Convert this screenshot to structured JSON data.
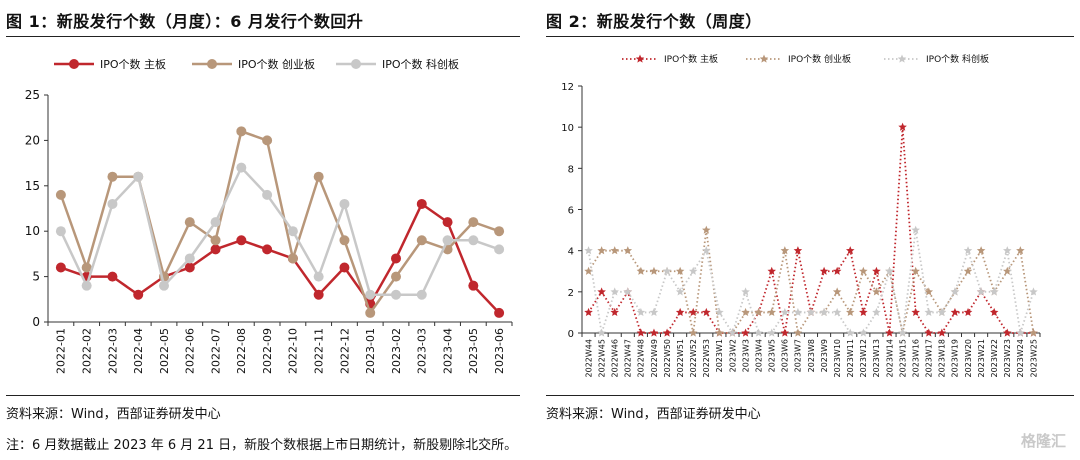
{
  "left": {
    "title": "图 1：新股发行个数（月度）：6 月发行个数回升",
    "source": "资料来源：Wind，西部证券研发中心"
  },
  "right": {
    "title": "图 2：新股发行个数（周度）",
    "source": "资料来源：Wind，西部证券研发中心"
  },
  "note": "注：6 月数据截止 2023 年 6 月 21 日，新股个数根据上市日期统计，新股剔除北交所。",
  "watermark": "格隆汇",
  "colors": {
    "main": "#C0272D",
    "chinext": "#B8977A",
    "star": "#C8C8C8"
  },
  "chart_data": [
    {
      "type": "line",
      "categories": [
        "2022-01",
        "2022-02",
        "2022-03",
        "2022-04",
        "2022-05",
        "2022-06",
        "2022-07",
        "2022-08",
        "2022-09",
        "2022-10",
        "2022-11",
        "2022-12",
        "2023-01",
        "2023-02",
        "2023-03",
        "2023-04",
        "2023-05",
        "2023-06"
      ],
      "ylim": [
        0,
        25
      ],
      "yticks": [
        0,
        5,
        10,
        15,
        20,
        25
      ],
      "legend_position": "top",
      "series": [
        {
          "name": "IPO个数 主板",
          "values": [
            6,
            5,
            5,
            3,
            5,
            6,
            8,
            9,
            8,
            7,
            3,
            6,
            2,
            7,
            13,
            11,
            4,
            1
          ]
        },
        {
          "name": "IPO个数 创业板",
          "values": [
            14,
            6,
            16,
            16,
            5,
            11,
            9,
            21,
            20,
            7,
            16,
            9,
            1,
            5,
            9,
            8,
            11,
            10
          ]
        },
        {
          "name": "IPO个数 科创板",
          "values": [
            10,
            4,
            13,
            16,
            4,
            7,
            11,
            17,
            14,
            10,
            5,
            13,
            3,
            3,
            3,
            9,
            9,
            8
          ]
        }
      ]
    },
    {
      "type": "line",
      "categories": [
        "2022W44",
        "2022W45",
        "2022W46",
        "2022W47",
        "2022W48",
        "2022W49",
        "2022W50",
        "2022W51",
        "2022W52",
        "2022W53",
        "2023W1",
        "2023W2",
        "2023W3",
        "2023W4",
        "2023W5",
        "2023W6",
        "2023W7",
        "2023W8",
        "2023W9",
        "2023W10",
        "2023W11",
        "2023W12",
        "2023W13",
        "2023W14",
        "2023W15",
        "2023W16",
        "2023W17",
        "2023W18",
        "2023W19",
        "2023W20",
        "2023W21",
        "2023W22",
        "2023W23",
        "2023W24",
        "2023W25"
      ],
      "ylim": [
        0,
        12
      ],
      "yticks": [
        0,
        2,
        4,
        6,
        8,
        10,
        12
      ],
      "legend_position": "top",
      "series": [
        {
          "name": "IPO个数 主板",
          "values": [
            1,
            2,
            1,
            2,
            0,
            0,
            0,
            1,
            1,
            1,
            0,
            0,
            0,
            1,
            3,
            0,
            4,
            1,
            3,
            3,
            4,
            1,
            3,
            0,
            10,
            1,
            0,
            0,
            1,
            1,
            2,
            1,
            0,
            0,
            0
          ]
        },
        {
          "name": "IPO个数 创业板",
          "values": [
            3,
            4,
            4,
            4,
            3,
            3,
            3,
            3,
            0,
            5,
            0,
            0,
            1,
            1,
            1,
            4,
            0,
            1,
            1,
            2,
            1,
            3,
            2,
            3,
            0,
            3,
            2,
            1,
            2,
            3,
            4,
            2,
            3,
            4,
            0
          ]
        },
        {
          "name": "IPO个数 科创板",
          "values": [
            4,
            0,
            2,
            2,
            1,
            1,
            3,
            2,
            3,
            4,
            1,
            0,
            2,
            0,
            0,
            1,
            1,
            1,
            1,
            1,
            0,
            0,
            1,
            3,
            0,
            5,
            1,
            1,
            2,
            4,
            2,
            2,
            4,
            0,
            2
          ]
        }
      ]
    }
  ]
}
